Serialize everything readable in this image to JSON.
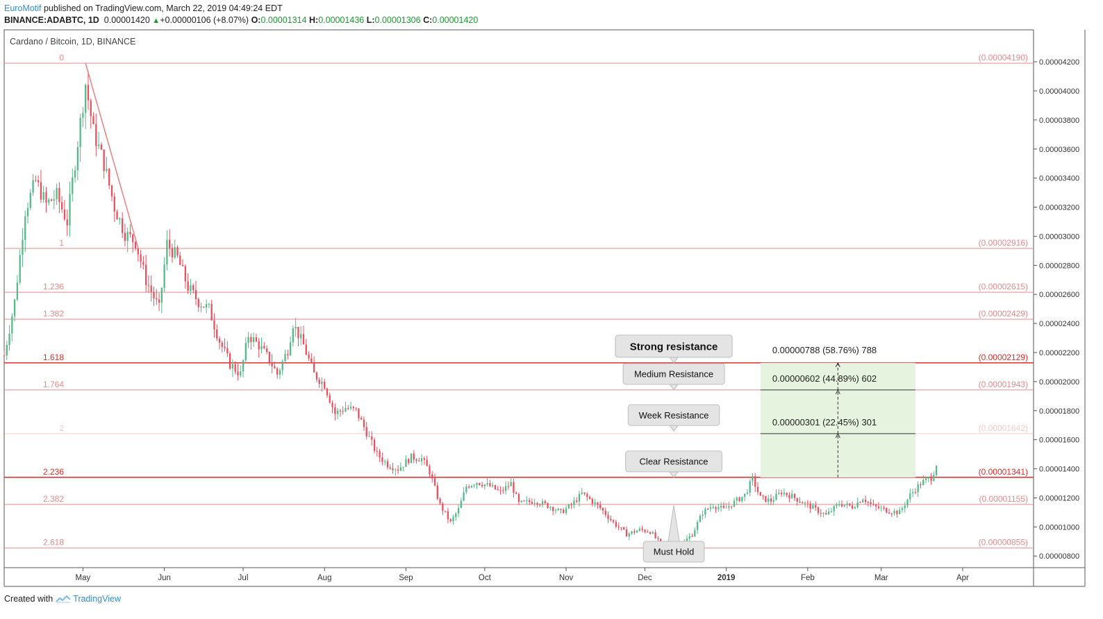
{
  "header": {
    "author": "EuroMotif",
    "published": "published on TradingView.com, March 22, 2019 04:49:24 EDT",
    "symbol": "BINANCE:ADABTC, 1D",
    "last": "0.00001420",
    "change": "+0.00000106 (+8.07%)",
    "o_label": "O:",
    "o": "0.00001314",
    "h_label": "H:",
    "h": "0.00001436",
    "l_label": "L:",
    "l": "0.00001306",
    "c_label": "C:",
    "c": "0.00001420"
  },
  "chart_title": "Cardano / Bitcoin, 1D, BINANCE",
  "footer": {
    "created_with": "Created with",
    "brand": "TradingView"
  },
  "colors": {
    "up": "#53b987",
    "down": "#eb4d5c",
    "fib": "#e88a8a",
    "fib_strong": "#e02a2a",
    "axis": "#333333",
    "box": "#e6f3df"
  },
  "chart_data": {
    "type": "candlestick",
    "title": "Cardano / Bitcoin, 1D, BINANCE",
    "x_axis_labels": [
      "May",
      "Jun",
      "Jul",
      "Aug",
      "Sep",
      "Oct",
      "Nov",
      "Dec",
      "2019",
      "Feb",
      "Mar",
      "Apr"
    ],
    "x_axis_dates": [
      "2018-05-01",
      "2018-06-01",
      "2018-07-01",
      "2018-08-01",
      "2018-09-01",
      "2018-10-01",
      "2018-11-01",
      "2018-12-01",
      "2019-01-01",
      "2019-02-01",
      "2019-03-01",
      "2019-04-01"
    ],
    "x_range": [
      "2018-04-01",
      "2019-04-28"
    ],
    "y_range": [
      7.2e-06,
      4.42e-05
    ],
    "y_ticks": [
      "0.00000800",
      "0.00001000",
      "0.00001200",
      "0.00001400",
      "0.00001600",
      "0.00001800",
      "0.00002000",
      "0.00002200",
      "0.00002400",
      "0.00002600",
      "0.00002800",
      "0.00003000",
      "0.00003200",
      "0.00003400",
      "0.00003600",
      "0.00003800",
      "0.00004000",
      "0.00004200"
    ],
    "price_path": [
      [
        "2018-04-01",
        2.18e-05
      ],
      [
        "2018-04-05",
        2.55e-05
      ],
      [
        "2018-04-09",
        3.18e-05
      ],
      [
        "2018-04-13",
        3.38e-05
      ],
      [
        "2018-04-17",
        3.22e-05
      ],
      [
        "2018-04-21",
        3.28e-05
      ],
      [
        "2018-04-25",
        3.1e-05
      ],
      [
        "2018-04-29",
        3.65e-05
      ],
      [
        "2018-05-02",
        4.05e-05
      ],
      [
        "2018-05-05",
        3.72e-05
      ],
      [
        "2018-05-09",
        3.5e-05
      ],
      [
        "2018-05-13",
        3.2e-05
      ],
      [
        "2018-05-17",
        3.02e-05
      ],
      [
        "2018-05-21",
        2.96e-05
      ],
      [
        "2018-05-25",
        2.7e-05
      ],
      [
        "2018-05-30",
        2.5e-05
      ],
      [
        "2018-06-02",
        2.95e-05
      ],
      [
        "2018-06-06",
        2.85e-05
      ],
      [
        "2018-06-10",
        2.65e-05
      ],
      [
        "2018-06-14",
        2.55e-05
      ],
      [
        "2018-06-18",
        2.5e-05
      ],
      [
        "2018-06-22",
        2.28e-05
      ],
      [
        "2018-06-26",
        2.12e-05
      ],
      [
        "2018-06-30",
        2.05e-05
      ],
      [
        "2018-07-03",
        2.32e-05
      ],
      [
        "2018-07-07",
        2.25e-05
      ],
      [
        "2018-07-11",
        2.15e-05
      ],
      [
        "2018-07-14",
        2.05e-05
      ],
      [
        "2018-07-18",
        2.22e-05
      ],
      [
        "2018-07-20",
        2.4e-05
      ],
      [
        "2018-07-24",
        2.25e-05
      ],
      [
        "2018-07-28",
        2.05e-05
      ],
      [
        "2018-08-01",
        1.98e-05
      ],
      [
        "2018-08-05",
        1.78e-05
      ],
      [
        "2018-08-09",
        1.82e-05
      ],
      [
        "2018-08-13",
        1.8e-05
      ],
      [
        "2018-08-17",
        1.65e-05
      ],
      [
        "2018-08-21",
        1.5e-05
      ],
      [
        "2018-08-25",
        1.43e-05
      ],
      [
        "2018-08-29",
        1.4e-05
      ],
      [
        "2018-09-03",
        1.48e-05
      ],
      [
        "2018-09-07",
        1.47e-05
      ],
      [
        "2018-09-10",
        1.38e-05
      ],
      [
        "2018-09-14",
        1.15e-05
      ],
      [
        "2018-09-18",
        1.03e-05
      ],
      [
        "2018-09-21",
        1.12e-05
      ],
      [
        "2018-09-24",
        1.28e-05
      ],
      [
        "2018-09-28",
        1.31e-05
      ],
      [
        "2018-10-03",
        1.28e-05
      ],
      [
        "2018-10-07",
        1.24e-05
      ],
      [
        "2018-10-11",
        1.3e-05
      ],
      [
        "2018-10-14",
        1.16e-05
      ],
      [
        "2018-10-20",
        1.18e-05
      ],
      [
        "2018-10-26",
        1.14e-05
      ],
      [
        "2018-10-30",
        1.1e-05
      ],
      [
        "2018-11-03",
        1.15e-05
      ],
      [
        "2018-11-07",
        1.23e-05
      ],
      [
        "2018-11-10",
        1.19e-05
      ],
      [
        "2018-11-14",
        1.13e-05
      ],
      [
        "2018-11-19",
        1.03e-05
      ],
      [
        "2018-11-24",
        9.5e-06
      ],
      [
        "2018-11-29",
        9.8e-06
      ],
      [
        "2018-12-03",
        9.7e-06
      ],
      [
        "2018-12-07",
        8.8e-06
      ],
      [
        "2018-12-11",
        8.7e-06
      ],
      [
        "2018-12-15",
        8.8e-06
      ],
      [
        "2018-12-19",
        9.5e-06
      ],
      [
        "2018-12-23",
        1.1e-05
      ],
      [
        "2018-12-27",
        1.15e-05
      ],
      [
        "2018-12-31",
        1.12e-05
      ],
      [
        "2019-01-04",
        1.17e-05
      ],
      [
        "2019-01-08",
        1.22e-05
      ],
      [
        "2019-01-11",
        1.33e-05
      ],
      [
        "2019-01-14",
        1.2e-05
      ],
      [
        "2019-01-18",
        1.18e-05
      ],
      [
        "2019-01-22",
        1.24e-05
      ],
      [
        "2019-01-26",
        1.21e-05
      ],
      [
        "2019-01-30",
        1.17e-05
      ],
      [
        "2019-02-04",
        1.12e-05
      ],
      [
        "2019-02-08",
        1.08e-05
      ],
      [
        "2019-02-13",
        1.16e-05
      ],
      [
        "2019-02-18",
        1.14e-05
      ],
      [
        "2019-02-22",
        1.2e-05
      ],
      [
        "2019-02-26",
        1.14e-05
      ],
      [
        "2019-03-04",
        1.11e-05
      ],
      [
        "2019-03-08",
        1.1e-05
      ],
      [
        "2019-03-12",
        1.22e-05
      ],
      [
        "2019-03-16",
        1.3e-05
      ],
      [
        "2019-03-20",
        1.34e-05
      ],
      [
        "2019-03-22",
        1.42e-05
      ]
    ],
    "fib_levels": [
      {
        "ratio": "0",
        "price": "(0.00004190)",
        "value": 4.19e-05,
        "strong": false
      },
      {
        "ratio": "1",
        "price": "(0.00002916)",
        "value": 2.916e-05,
        "strong": false
      },
      {
        "ratio": "1.236",
        "price": "(0.00002615)",
        "value": 2.615e-05,
        "strong": false
      },
      {
        "ratio": "1.382",
        "price": "(0.00002429)",
        "value": 2.429e-05,
        "strong": false
      },
      {
        "ratio": "1.618",
        "price": "(0.00002129)",
        "value": 2.129e-05,
        "strong": true
      },
      {
        "ratio": "1.764",
        "price": "(0.00001943)",
        "value": 1.943e-05,
        "strong": false
      },
      {
        "ratio": "2",
        "price": "(0.00001642)",
        "value": 1.642e-05,
        "strong": false,
        "faint": true
      },
      {
        "ratio": "2.236",
        "price": "(0.00001341)",
        "value": 1.341e-05,
        "strong": true
      },
      {
        "ratio": "2.382",
        "price": "(0.00001155)",
        "value": 1.155e-05,
        "strong": false
      },
      {
        "ratio": "2.618",
        "price": "(0.00000855)",
        "value": 8.55e-06,
        "strong": false
      }
    ],
    "trend_line": {
      "from": [
        "2018-05-02",
        4.19e-05
      ],
      "to": [
        "2018-05-22",
        2.92e-05
      ]
    },
    "callouts": [
      {
        "text": "Strong resistance",
        "date": "2018-12-12",
        "value": 2.129e-05,
        "bold": true
      },
      {
        "text": "Medium Resistance",
        "date": "2018-12-12",
        "value": 1.943e-05
      },
      {
        "text": "Week Resistance",
        "date": "2018-12-12",
        "value": 1.66e-05
      },
      {
        "text": "Clear Resistance",
        "date": "2018-12-12",
        "value": 1.341e-05
      },
      {
        "text": "Must Hold",
        "date": "2018-12-12",
        "value": 1.15e-05,
        "below": true
      }
    ],
    "projection": {
      "start_date": "2019-01-14",
      "end_date": "2019-03-14",
      "base": 1.341e-05,
      "levels": [
        {
          "label": "0.00000301 (22.45%) 301",
          "value": 1.642e-05
        },
        {
          "label": "0.00000602 (44.89%) 602",
          "value": 1.943e-05
        },
        {
          "label": "0.00000788 (58.76%) 788",
          "value": 2.129e-05
        }
      ]
    }
  }
}
